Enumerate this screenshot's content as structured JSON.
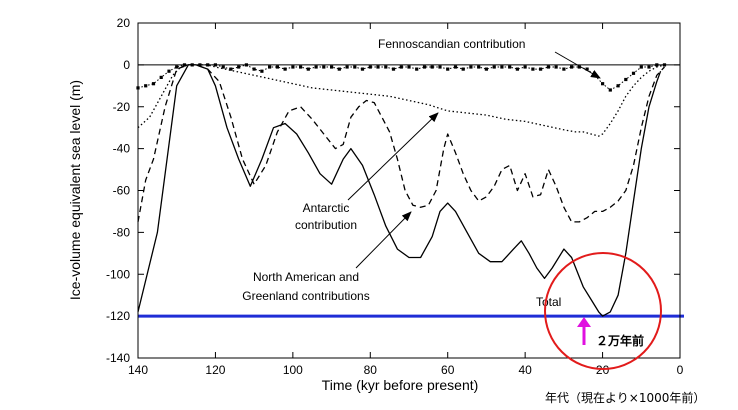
{
  "chart_data": {
    "type": "line",
    "xlabel": "Time (kyr before present)",
    "ylabel": "Ice-volume equivalent sea level (m)",
    "xlim": [
      140,
      0
    ],
    "ylim": [
      -140,
      20
    ],
    "x_ticks": [
      140,
      120,
      100,
      80,
      60,
      40,
      20,
      0
    ],
    "y_ticks": [
      20,
      0,
      -20,
      -40,
      -60,
      -80,
      -100,
      -120,
      -140
    ],
    "series": [
      {
        "name": "Total",
        "style": "solid",
        "color": "#000000",
        "x": [
          140,
          135,
          130,
          127,
          125,
          122,
          120,
          117,
          114,
          111,
          108,
          105,
          102,
          99,
          96,
          93,
          90,
          87,
          85,
          82,
          79,
          76,
          73,
          70,
          67,
          64,
          62,
          60,
          58,
          55,
          52,
          49,
          46,
          43,
          41,
          39,
          37,
          35,
          33,
          30,
          28,
          25,
          23,
          21,
          20,
          18,
          16,
          14,
          12,
          10,
          8,
          6,
          5
        ],
        "y": [
          -118,
          -80,
          -10,
          0,
          0,
          -2,
          -10,
          -30,
          -45,
          -58,
          -45,
          -30,
          -28,
          -33,
          -42,
          -52,
          -57,
          -45,
          -40,
          -48,
          -62,
          -77,
          -88,
          -92,
          -92,
          -82,
          -70,
          -66,
          -70,
          -80,
          -90,
          -94,
          -94,
          -88,
          -84,
          -90,
          -97,
          -102,
          -97,
          -88,
          -92,
          -106,
          -112,
          -118,
          -120,
          -118,
          -110,
          -90,
          -65,
          -40,
          -20,
          -8,
          -3
        ]
      },
      {
        "name": "North American and Greenland contributions",
        "style": "dashed",
        "color": "#000000",
        "x": [
          140,
          138,
          136,
          133,
          130,
          127,
          125,
          122,
          119,
          116,
          113,
          110,
          107,
          104,
          101,
          98,
          95,
          92,
          89,
          87,
          85,
          83,
          81,
          79,
          77,
          75,
          73,
          71,
          69,
          67,
          65,
          63,
          61,
          60,
          58,
          56,
          54,
          52,
          50,
          48,
          46,
          44,
          42,
          40,
          38,
          36,
          34,
          32,
          30,
          28,
          26,
          24,
          22,
          20,
          18,
          16,
          14,
          12,
          10,
          8,
          6,
          4
        ],
        "y": [
          -75,
          -55,
          -45,
          -20,
          -2,
          0,
          0,
          -2,
          -8,
          -25,
          -45,
          -57,
          -48,
          -32,
          -22,
          -20,
          -26,
          -33,
          -40,
          -38,
          -25,
          -20,
          -17,
          -18,
          -25,
          -32,
          -45,
          -60,
          -67,
          -68,
          -67,
          -60,
          -40,
          -33,
          -42,
          -52,
          -60,
          -65,
          -63,
          -58,
          -50,
          -48,
          -60,
          -52,
          -63,
          -62,
          -50,
          -58,
          -68,
          -75,
          -75,
          -73,
          -70,
          -70,
          -68,
          -65,
          -60,
          -48,
          -30,
          -15,
          -5,
          -1
        ]
      },
      {
        "name": "Antarctic contribution",
        "style": "dotted",
        "color": "#000000",
        "x": [
          140,
          137,
          134,
          131,
          129,
          127,
          125,
          122,
          120,
          115,
          110,
          105,
          100,
          95,
          90,
          85,
          80,
          75,
          70,
          65,
          60,
          55,
          50,
          45,
          40,
          35,
          30,
          27,
          25,
          23,
          21,
          20,
          18,
          16,
          14,
          12,
          10,
          8,
          6,
          4
        ],
        "y": [
          -30,
          -25,
          -15,
          -5,
          -1,
          0,
          0,
          0,
          -1,
          -3,
          -5,
          -7,
          -9,
          -11,
          -12,
          -13,
          -14,
          -15,
          -17,
          -19,
          -22,
          -23,
          -24,
          -26,
          -27,
          -29,
          -31,
          -32,
          -32,
          -33,
          -34,
          -33,
          -28,
          -22,
          -15,
          -10,
          -6,
          -3,
          -1,
          0
        ]
      },
      {
        "name": "Fennoscandian contribution",
        "style": "dotted-marker",
        "color": "#000000",
        "x": [
          140,
          138,
          136,
          134,
          132,
          130,
          128,
          126,
          124,
          122,
          120,
          118,
          116,
          114,
          112,
          110,
          108,
          106,
          104,
          102,
          100,
          98,
          96,
          94,
          92,
          90,
          88,
          86,
          84,
          82,
          80,
          78,
          76,
          74,
          72,
          70,
          68,
          66,
          64,
          62,
          60,
          58,
          56,
          54,
          52,
          50,
          48,
          46,
          44,
          42,
          40,
          38,
          36,
          34,
          32,
          30,
          28,
          26,
          24,
          22,
          20,
          18,
          16,
          14,
          12,
          10,
          8,
          6,
          4
        ],
        "y": [
          -11,
          -10,
          -9,
          -6,
          -3,
          -1,
          0,
          0,
          0,
          0,
          0,
          -1,
          -2,
          -1,
          0,
          -2,
          -3,
          -1,
          -1,
          -2,
          -1,
          -1,
          -2,
          -1,
          -1,
          -1,
          -2,
          -1,
          -1,
          -2,
          -1,
          -1,
          -1,
          -2,
          -1,
          -1,
          -2,
          -1,
          -1,
          -1,
          -2,
          -1,
          -2,
          -1,
          -1,
          -2,
          -1,
          -1,
          -1,
          -2,
          -1,
          -2,
          -2,
          -1,
          -1,
          -2,
          -1,
          -1,
          -2,
          -5,
          -9,
          -12,
          -10,
          -7,
          -4,
          -1,
          -1,
          0,
          0
        ]
      }
    ],
    "reference_lines": [
      {
        "name": "blue-level-line",
        "y": -120,
        "color": "#1f2dd6"
      }
    ],
    "annotations": {
      "fennoscandian": "Fennoscandian  contribution",
      "antarctic_line1": "Antarctic",
      "antarctic_line2": "contribution",
      "na_line1": "North  American and",
      "na_line2": "Greenland  contributions",
      "total": "Total",
      "circle_label": "２万年前",
      "x_note": "年代（現在より×1000年前）"
    },
    "colors": {
      "accent_blue": "#1f2dd6",
      "circle_red": "#e21b1b",
      "arrow_magenta": "#e010e0"
    }
  }
}
